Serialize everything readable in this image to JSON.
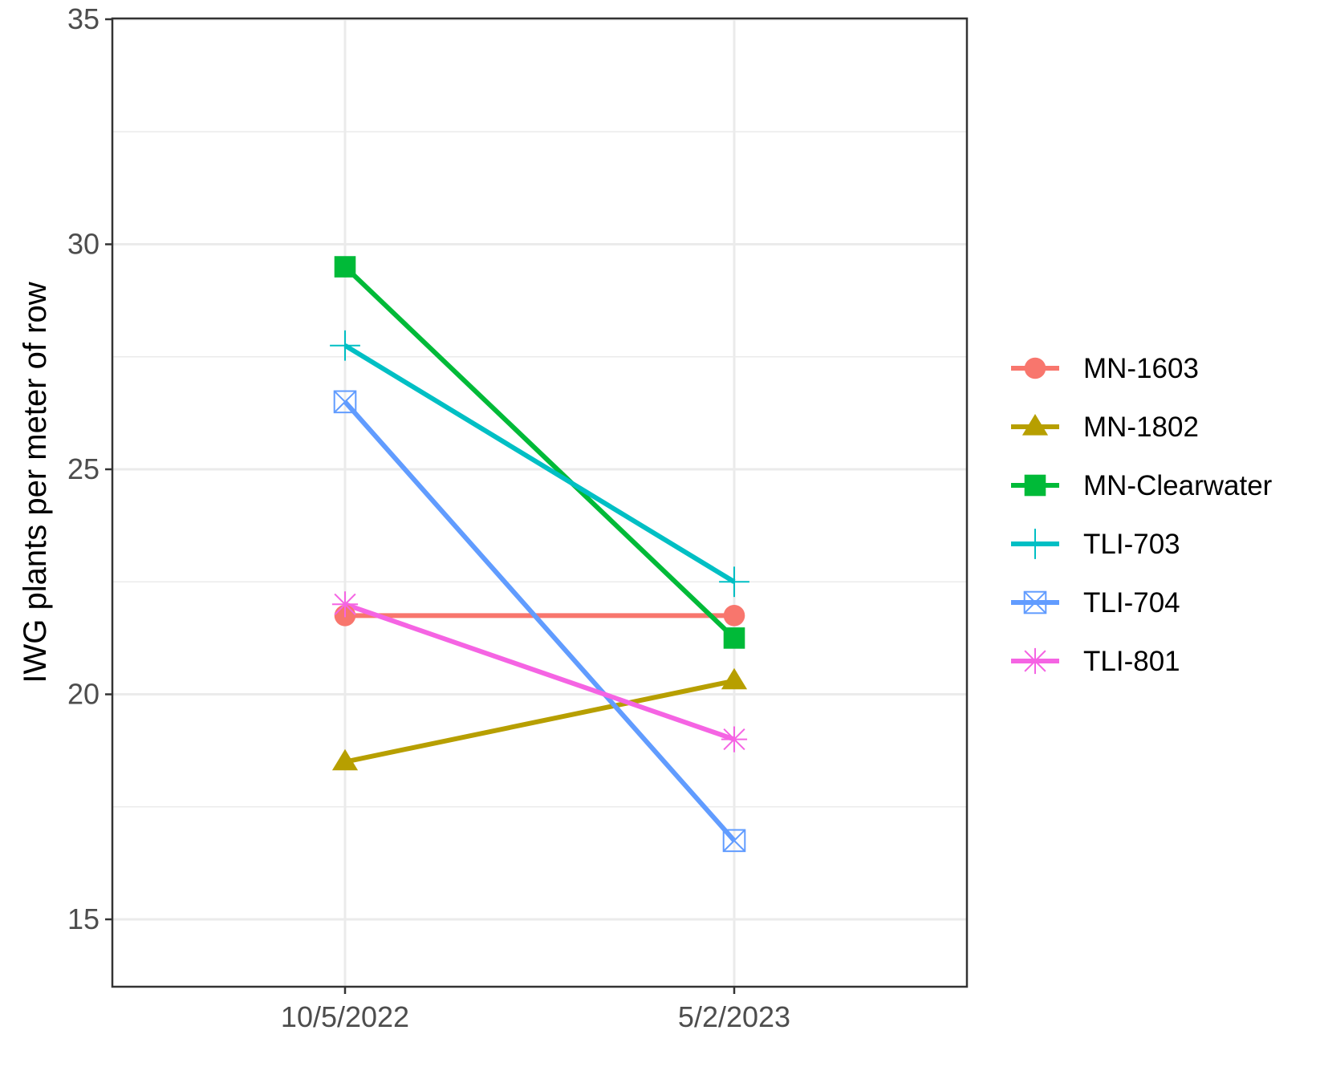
{
  "chart_data": {
    "type": "line",
    "title": "",
    "xlabel": "",
    "ylabel": "IWG plants per meter of row",
    "categories": [
      "10/5/2022",
      "5/2/2023"
    ],
    "ylim": [
      13.6,
      35
    ],
    "yticks": [
      "15",
      "20",
      "25",
      "30",
      "35"
    ],
    "grid": true,
    "legend_position": "right",
    "series": [
      {
        "name": "MN-1603",
        "values": [
          21.75,
          21.75
        ],
        "color": "#F8766D",
        "marker": "circle"
      },
      {
        "name": "MN-1802",
        "values": [
          18.5,
          20.3
        ],
        "color": "#B79F00",
        "marker": "triangle"
      },
      {
        "name": "MN-Clearwater",
        "values": [
          29.5,
          21.25
        ],
        "color": "#00BA38",
        "marker": "square"
      },
      {
        "name": "TLI-703",
        "values": [
          27.75,
          22.5
        ],
        "color": "#00BFC4",
        "marker": "plus"
      },
      {
        "name": "TLI-704",
        "values": [
          26.5,
          16.75
        ],
        "color": "#619CFF",
        "marker": "boxed-x"
      },
      {
        "name": "TLI-801",
        "values": [
          22.0,
          19.0
        ],
        "color": "#F564E3",
        "marker": "asterisk"
      }
    ]
  }
}
